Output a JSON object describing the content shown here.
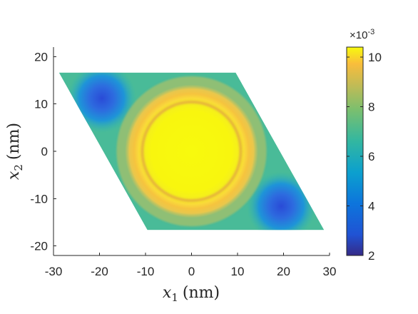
{
  "chart_data": {
    "type": "heatmap",
    "title": "",
    "xlabel": {
      "symbol": "x",
      "subscript": "1",
      "unit": "(nm)"
    },
    "ylabel": {
      "symbol": "x",
      "subscript": "2",
      "unit": "(nm)"
    },
    "xlim": [
      -30,
      30
    ],
    "ylim": [
      -22,
      22
    ],
    "xticks": [
      -30,
      -20,
      -10,
      0,
      10,
      20,
      30
    ],
    "yticks": [
      -20,
      -10,
      0,
      10,
      20
    ],
    "domain": {
      "shape": "rhombus",
      "vertices": [
        [
          -28.8,
          16.6
        ],
        [
          9.6,
          16.6
        ],
        [
          28.8,
          -16.6
        ],
        [
          -9.6,
          -16.6
        ]
      ]
    },
    "features": {
      "central_disc": {
        "center": [
          0,
          0
        ],
        "radius": 14.5,
        "value": 10.3
      },
      "ring": {
        "center": [
          0,
          0
        ],
        "radius": 10.7,
        "value": 9.0
      },
      "minima": [
        {
          "center": [
            -19.5,
            11.2
          ],
          "value": 4.3
        },
        {
          "center": [
            19.5,
            -11.6
          ],
          "value": 4.0
        }
      ],
      "background_value": 6.8
    },
    "colorbar": {
      "colormap": "parula",
      "limits": [
        2,
        10.4
      ],
      "ticks": [
        2,
        4,
        6,
        8,
        10
      ],
      "exponent_label": {
        "base": "×10",
        "exponent": "-3"
      }
    },
    "grid": false,
    "legend": "none"
  }
}
